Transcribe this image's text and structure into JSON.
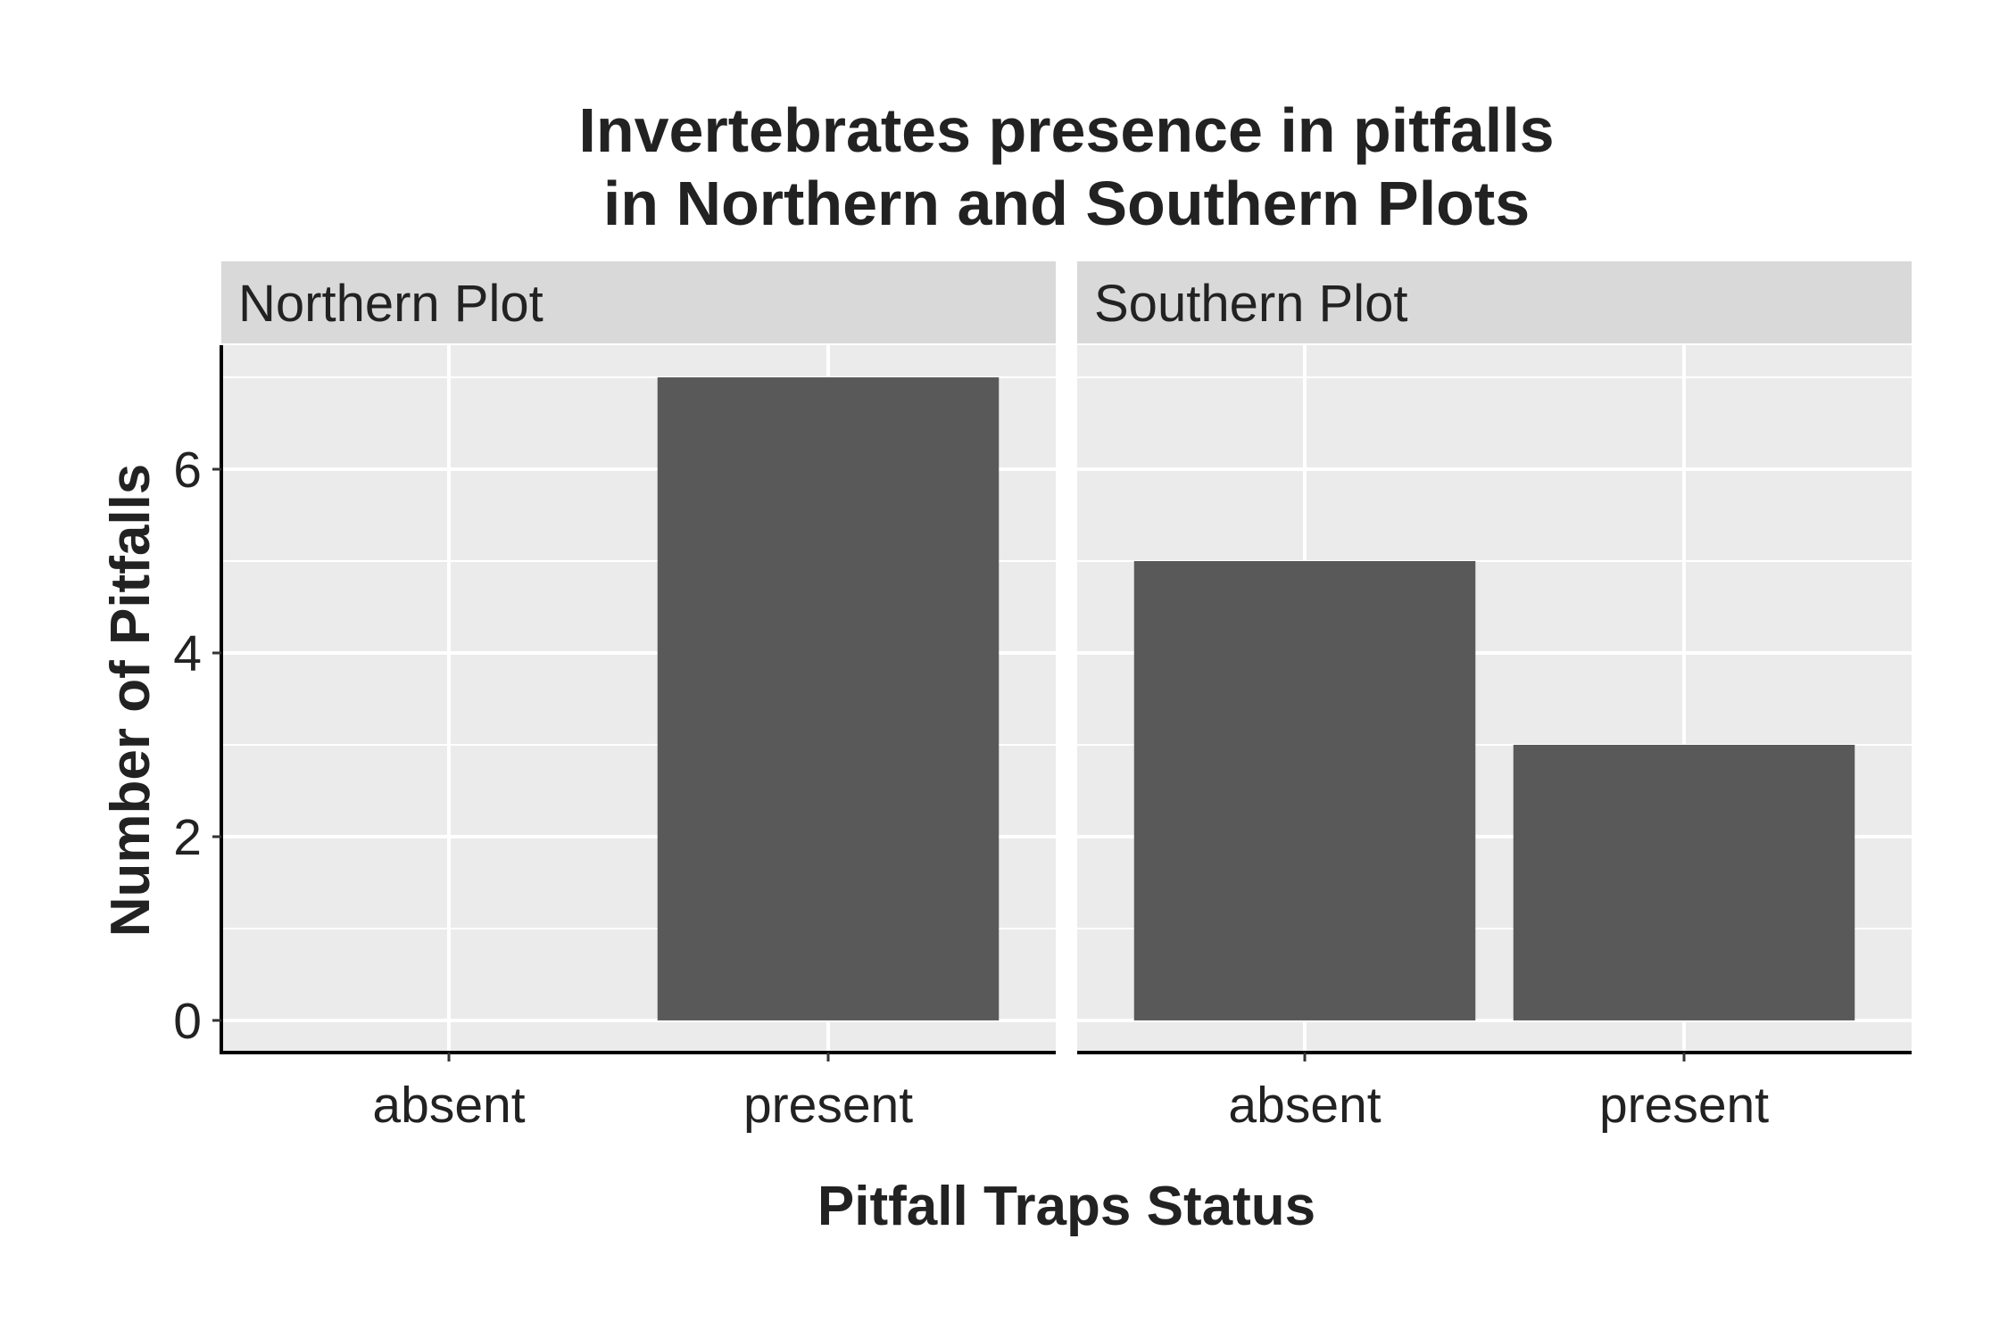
{
  "chart_data": {
    "type": "bar",
    "title_line1": "Invertebrates presence in pitfalls",
    "title_line2": "in Northern and Southern Plots",
    "xlabel": "Pitfall Traps Status",
    "ylabel": "Number of Pitfalls",
    "categories": [
      "absent",
      "present"
    ],
    "ylim": [
      -0.35,
      7.35
    ],
    "yticks": [
      0,
      2,
      4,
      6
    ],
    "grid": true,
    "bar_color": "#595959",
    "panel_background": "#EBEBEB",
    "strip_background": "#D9D9D9",
    "facets": [
      {
        "name": "Northern Plot",
        "values": [
          0,
          7
        ]
      },
      {
        "name": "Southern Plot",
        "values": [
          5,
          3
        ]
      }
    ]
  }
}
